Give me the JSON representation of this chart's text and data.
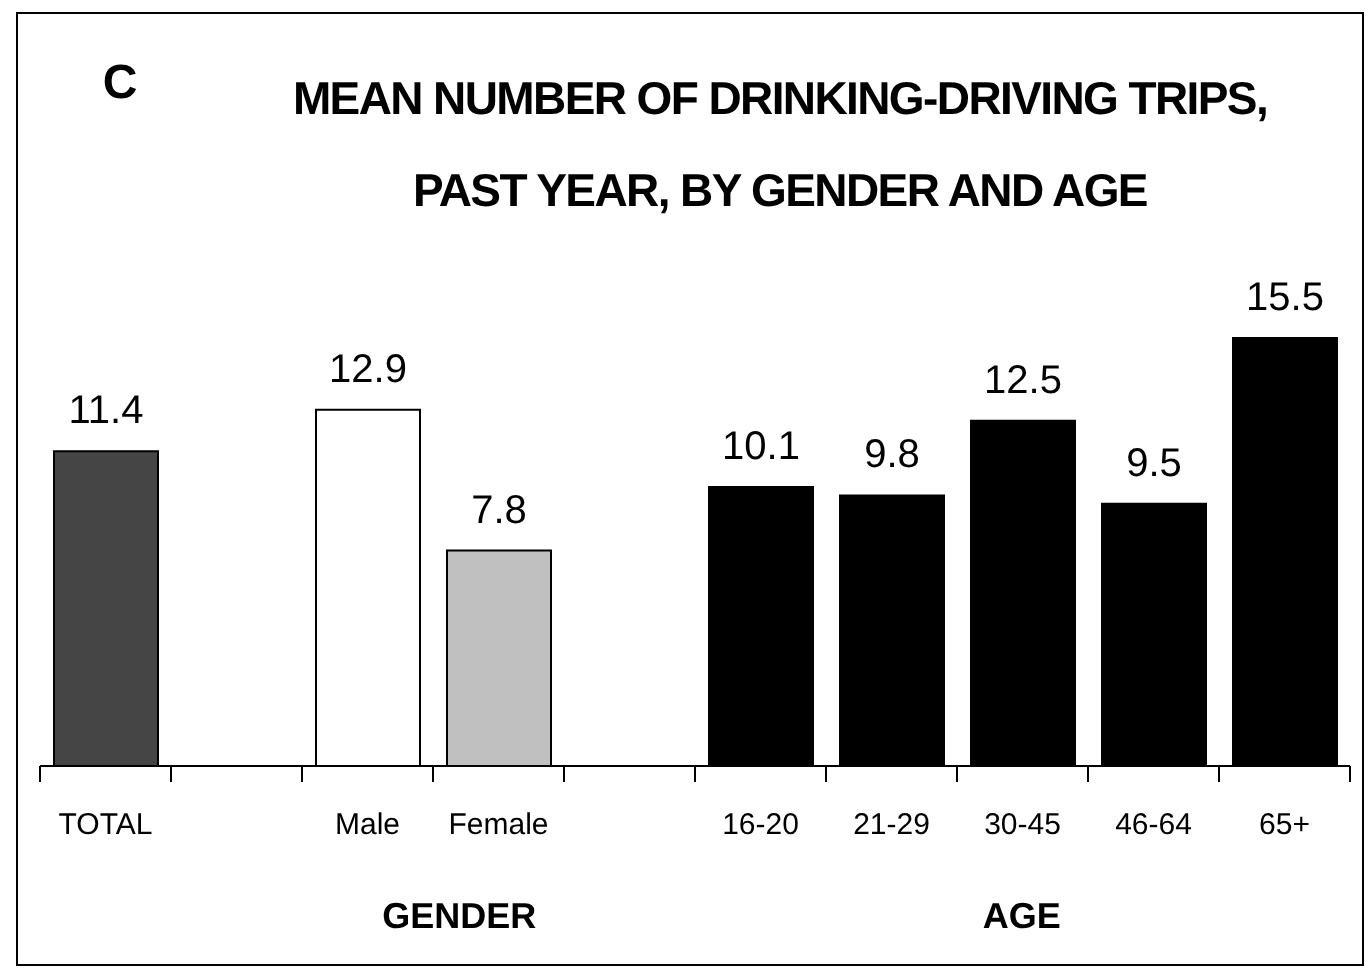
{
  "chart_data": {
    "type": "bar",
    "title": "MEAN NUMBER OF DRINKING-DRIVING TRIPS, PAST YEAR, BY GENDER AND AGE",
    "annotations": [
      "C",
      "GENDER",
      "AGE"
    ],
    "categories": [
      "TOTAL",
      null,
      "Male",
      "Female",
      null,
      "16-20",
      "21-29",
      "30-45",
      "46-64",
      "65+"
    ],
    "values": [
      11.4,
      null,
      12.9,
      7.8,
      null,
      10.1,
      9.8,
      12.5,
      9.5,
      15.5
    ],
    "colors": [
      "#454545",
      "#ffffff",
      "#ffffff",
      "#c0c0c0",
      "#ffffff",
      "#000000",
      "#000000",
      "#000000",
      "#000000",
      "#000000"
    ],
    "data_labels": true
  }
}
